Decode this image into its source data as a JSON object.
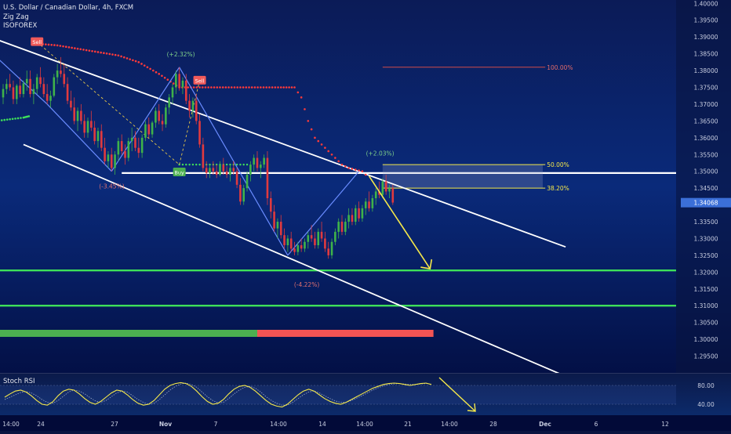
{
  "legend": {
    "symbol": "U.S. Dollar / Canadian Dollar, 4h, FXCM",
    "indicators": [
      "Zig Zag",
      "ISOFOREX"
    ]
  },
  "rsi": {
    "label": "Stoch RSI",
    "levels": [
      "80.00",
      "40.00"
    ]
  },
  "colors": {
    "bg_top": "#0b1a55",
    "bg_bottom": "#020a3a",
    "up": "#3fb24a",
    "down": "#e03a3e",
    "accent_yellow": "#f5e84a",
    "green_line": "#3ee05a",
    "sell": "#f05a5a",
    "buy": "#4caf50",
    "price_badge": "#3b6fd8"
  },
  "chart_data": {
    "type": "candlestick",
    "title": "U.S. Dollar / Canadian Dollar, 4h, FXCM",
    "ylim": [
      1.29,
      1.401
    ],
    "y_ticks": [
      "1.40000",
      "1.39500",
      "1.39000",
      "1.38500",
      "1.38000",
      "1.37500",
      "1.37000",
      "1.36500",
      "1.36000",
      "1.35500",
      "1.35000",
      "1.34500",
      "1.33500",
      "1.33000",
      "1.32500",
      "1.32000",
      "1.31500",
      "1.31000",
      "1.30500",
      "1.30000",
      "1.29500"
    ],
    "x_ticks": [
      "14:00",
      "24",
      "27",
      "Nov",
      "7",
      "14:00",
      "14",
      "14:00",
      "21",
      "14:00",
      "28",
      "Dec",
      "6",
      "12"
    ],
    "current_price": "1.34068",
    "candles": [
      [
        1.372,
        1.376,
        1.37,
        1.3745
      ],
      [
        1.3745,
        1.3775,
        1.373,
        1.376
      ],
      [
        1.376,
        1.379,
        1.374,
        1.375
      ],
      [
        1.375,
        1.377,
        1.37,
        1.3715
      ],
      [
        1.3715,
        1.376,
        1.37,
        1.3755
      ],
      [
        1.3755,
        1.378,
        1.372,
        1.373
      ],
      [
        1.373,
        1.377,
        1.372,
        1.3762
      ],
      [
        1.3762,
        1.38,
        1.374,
        1.3775
      ],
      [
        1.3775,
        1.38,
        1.372,
        1.373
      ],
      [
        1.373,
        1.376,
        1.37,
        1.3745
      ],
      [
        1.3745,
        1.379,
        1.373,
        1.378
      ],
      [
        1.378,
        1.381,
        1.375,
        1.376
      ],
      [
        1.376,
        1.378,
        1.372,
        1.373
      ],
      [
        1.373,
        1.376,
        1.37,
        1.371
      ],
      [
        1.371,
        1.374,
        1.369,
        1.3725
      ],
      [
        1.3725,
        1.379,
        1.372,
        1.378
      ],
      [
        1.378,
        1.382,
        1.376,
        1.38
      ],
      [
        1.38,
        1.384,
        1.378,
        1.379
      ],
      [
        1.379,
        1.382,
        1.375,
        1.376
      ],
      [
        1.376,
        1.378,
        1.37,
        1.371
      ],
      [
        1.371,
        1.374,
        1.368,
        1.369
      ],
      [
        1.369,
        1.372,
        1.364,
        1.365
      ],
      [
        1.365,
        1.369,
        1.362,
        1.368
      ],
      [
        1.368,
        1.37,
        1.364,
        1.365
      ],
      [
        1.365,
        1.367,
        1.36,
        1.3615
      ],
      [
        1.3615,
        1.366,
        1.36,
        1.365
      ],
      [
        1.365,
        1.368,
        1.362,
        1.363
      ],
      [
        1.363,
        1.365,
        1.358,
        1.359
      ],
      [
        1.359,
        1.363,
        1.357,
        1.362
      ],
      [
        1.362,
        1.364,
        1.356,
        1.357
      ],
      [
        1.357,
        1.36,
        1.352,
        1.353
      ],
      [
        1.353,
        1.356,
        1.351,
        1.355
      ],
      [
        1.355,
        1.357,
        1.35,
        1.351
      ],
      [
        1.351,
        1.356,
        1.349,
        1.355
      ],
      [
        1.355,
        1.36,
        1.353,
        1.359
      ],
      [
        1.359,
        1.361,
        1.355,
        1.356
      ],
      [
        1.356,
        1.358,
        1.352,
        1.354
      ],
      [
        1.354,
        1.36,
        1.353,
        1.359
      ],
      [
        1.359,
        1.363,
        1.356,
        1.36
      ],
      [
        1.36,
        1.362,
        1.356,
        1.357
      ],
      [
        1.357,
        1.36,
        1.354,
        1.3555
      ],
      [
        1.3555,
        1.361,
        1.354,
        1.36
      ],
      [
        1.36,
        1.365,
        1.359,
        1.364
      ],
      [
        1.364,
        1.366,
        1.36,
        1.361
      ],
      [
        1.361,
        1.365,
        1.36,
        1.3645
      ],
      [
        1.3645,
        1.369,
        1.363,
        1.368
      ],
      [
        1.368,
        1.37,
        1.364,
        1.365
      ],
      [
        1.365,
        1.367,
        1.362,
        1.364
      ],
      [
        1.364,
        1.37,
        1.363,
        1.369
      ],
      [
        1.369,
        1.373,
        1.367,
        1.372
      ],
      [
        1.372,
        1.376,
        1.37,
        1.375
      ],
      [
        1.375,
        1.38,
        1.373,
        1.379
      ],
      [
        1.379,
        1.381,
        1.374,
        1.375
      ],
      [
        1.375,
        1.378,
        1.373,
        1.377
      ],
      [
        1.377,
        1.379,
        1.37,
        1.371
      ],
      [
        1.371,
        1.373,
        1.366,
        1.368
      ],
      [
        1.368,
        1.372,
        1.366,
        1.371
      ],
      [
        1.371,
        1.373,
        1.364,
        1.365
      ],
      [
        1.365,
        1.367,
        1.357,
        1.358
      ],
      [
        1.358,
        1.36,
        1.35,
        1.351
      ],
      [
        1.351,
        1.353,
        1.348,
        1.3495
      ],
      [
        1.3495,
        1.352,
        1.348,
        1.351
      ],
      [
        1.351,
        1.353,
        1.349,
        1.35
      ],
      [
        1.35,
        1.352,
        1.348,
        1.349
      ],
      [
        1.349,
        1.353,
        1.3485,
        1.352
      ],
      [
        1.352,
        1.354,
        1.349,
        1.35
      ],
      [
        1.35,
        1.3515,
        1.348,
        1.349
      ],
      [
        1.349,
        1.352,
        1.347,
        1.351
      ],
      [
        1.351,
        1.353,
        1.349,
        1.35
      ],
      [
        1.35,
        1.351,
        1.345,
        1.346
      ],
      [
        1.346,
        1.348,
        1.34,
        1.341
      ],
      [
        1.341,
        1.346,
        1.34,
        1.345
      ],
      [
        1.345,
        1.35,
        1.344,
        1.349
      ],
      [
        1.349,
        1.353,
        1.347,
        1.352
      ],
      [
        1.352,
        1.355,
        1.35,
        1.354
      ],
      [
        1.354,
        1.356,
        1.35,
        1.351
      ],
      [
        1.351,
        1.353,
        1.348,
        1.352
      ],
      [
        1.352,
        1.355,
        1.351,
        1.354
      ],
      [
        1.354,
        1.356,
        1.34,
        1.342
      ],
      [
        1.342,
        1.344,
        1.336,
        1.338
      ],
      [
        1.338,
        1.34,
        1.332,
        1.333
      ],
      [
        1.333,
        1.336,
        1.33,
        1.335
      ],
      [
        1.335,
        1.337,
        1.33,
        1.331
      ],
      [
        1.331,
        1.333,
        1.327,
        1.328
      ],
      [
        1.328,
        1.331,
        1.326,
        1.33
      ],
      [
        1.33,
        1.332,
        1.326,
        1.327
      ],
      [
        1.327,
        1.329,
        1.325,
        1.326
      ],
      [
        1.326,
        1.329,
        1.325,
        1.328
      ],
      [
        1.328,
        1.33,
        1.326,
        1.327
      ],
      [
        1.327,
        1.33,
        1.326,
        1.329
      ],
      [
        1.329,
        1.332,
        1.327,
        1.331
      ],
      [
        1.331,
        1.334,
        1.329,
        1.33
      ],
      [
        1.33,
        1.332,
        1.327,
        1.328
      ],
      [
        1.328,
        1.333,
        1.327,
        1.332
      ],
      [
        1.332,
        1.335,
        1.329,
        1.33
      ],
      [
        1.33,
        1.332,
        1.326,
        1.327
      ],
      [
        1.327,
        1.329,
        1.324,
        1.325
      ],
      [
        1.325,
        1.33,
        1.324,
        1.329
      ],
      [
        1.329,
        1.333,
        1.328,
        1.332
      ],
      [
        1.332,
        1.336,
        1.33,
        1.335
      ],
      [
        1.335,
        1.337,
        1.331,
        1.332
      ],
      [
        1.332,
        1.336,
        1.331,
        1.335
      ],
      [
        1.335,
        1.339,
        1.333,
        1.337
      ],
      [
        1.337,
        1.339,
        1.334,
        1.335
      ],
      [
        1.335,
        1.34,
        1.334,
        1.339
      ],
      [
        1.339,
        1.341,
        1.335,
        1.336
      ],
      [
        1.336,
        1.34,
        1.335,
        1.339
      ],
      [
        1.339,
        1.342,
        1.337,
        1.341
      ],
      [
        1.341,
        1.344,
        1.338,
        1.339
      ],
      [
        1.339,
        1.343,
        1.338,
        1.342
      ],
      [
        1.342,
        1.345,
        1.34,
        1.344
      ],
      [
        1.344,
        1.347,
        1.342,
        1.343
      ],
      [
        1.343,
        1.348,
        1.342,
        1.347
      ],
      [
        1.347,
        1.349,
        1.343,
        1.344
      ],
      [
        1.344,
        1.346,
        1.342,
        1.345
      ],
      [
        1.345,
        1.346,
        1.34,
        1.3407
      ]
    ],
    "zigzag": [
      {
        "i": -2,
        "y": 1.384
      },
      {
        "i": 13,
        "y": 1.37
      },
      {
        "i": 32,
        "y": 1.35
      },
      {
        "i": 52,
        "y": 1.381
      },
      {
        "i": 84,
        "y": 1.325
      },
      {
        "i": 105,
        "y": 1.35
      }
    ],
    "zigzag_labels": [
      "(+2.32%)",
      "(-3.45%)",
      "(-4.22%)",
      "(+2.03%)"
    ],
    "signals": [
      {
        "type": "sell",
        "label": "Sell",
        "i": 10,
        "y": 1.3885
      },
      {
        "type": "buy",
        "label": "Buy",
        "i": 52,
        "y": 1.3497
      },
      {
        "type": "sell",
        "label": "Sell",
        "i": 58,
        "y": 1.377
      }
    ],
    "trend_dots_red": [
      [
        10,
        1.388
      ],
      [
        16,
        1.3875
      ],
      [
        22,
        1.3865
      ],
      [
        28,
        1.3855
      ],
      [
        34,
        1.3845
      ],
      [
        40,
        1.3825
      ],
      [
        46,
        1.379
      ],
      [
        52,
        1.375
      ],
      [
        58,
        1.375
      ],
      [
        64,
        1.375
      ],
      [
        70,
        1.375
      ],
      [
        76,
        1.375
      ],
      [
        82,
        1.375
      ],
      [
        86,
        1.375
      ],
      [
        88,
        1.372
      ],
      [
        90,
        1.365
      ],
      [
        92,
        1.36
      ],
      [
        94,
        1.358
      ],
      [
        96,
        1.356
      ],
      [
        98,
        1.354
      ],
      [
        100,
        1.352
      ],
      [
        102,
        1.351
      ],
      [
        104,
        1.3505
      ],
      [
        106,
        1.35
      ],
      [
        108,
        1.348
      ]
    ],
    "trend_dots_green": [
      [
        -2,
        1.365
      ],
      [
        2,
        1.3655
      ],
      [
        6,
        1.366
      ],
      [
        8,
        1.3665
      ]
    ],
    "channel_upper": [
      [
        -4,
        1.39
      ],
      [
        166,
        1.3275
      ]
    ],
    "channel_lower": [
      [
        6,
        1.358
      ],
      [
        166,
        1.289
      ]
    ],
    "horizontal_levels": [
      {
        "value": 1.3495,
        "color": "white"
      },
      {
        "value": 1.3205,
        "color": "green"
      },
      {
        "value": 1.31,
        "color": "green"
      }
    ],
    "fib": [
      {
        "label": "100.00%",
        "value": 1.381
      },
      {
        "label": "50.00%",
        "value": 1.352
      },
      {
        "label": "38.20%",
        "value": 1.345
      }
    ],
    "projection_arrow": {
      "from": [
        108,
        1.3495
      ],
      "to": [
        126,
        1.321
      ]
    },
    "stoch_rsi": {
      "ylim": [
        20,
        100
      ],
      "k": [
        55,
        62,
        68,
        70,
        66,
        58,
        48,
        40,
        38,
        45,
        58,
        68,
        72,
        70,
        62,
        52,
        44,
        40,
        46,
        55,
        64,
        70,
        68,
        60,
        50,
        42,
        38,
        40,
        48,
        60,
        72,
        80,
        84,
        86,
        84,
        78,
        68,
        56,
        46,
        40,
        42,
        50,
        62,
        72,
        78,
        80,
        76,
        68,
        58,
        48,
        40,
        36,
        34,
        40,
        50,
        60,
        68,
        72,
        68,
        60,
        52,
        46,
        42,
        40,
        44,
        50,
        56,
        62,
        68,
        74,
        78,
        82,
        84,
        85,
        84,
        82,
        80,
        82,
        84,
        85,
        82
      ],
      "d": [
        50,
        55,
        60,
        65,
        67,
        64,
        58,
        50,
        44,
        42,
        48,
        57,
        66,
        70,
        68,
        62,
        54,
        47,
        44,
        48,
        56,
        64,
        68,
        66,
        58,
        50,
        44,
        40,
        42,
        50,
        60,
        70,
        78,
        83,
        85,
        82,
        76,
        66,
        56,
        48,
        43,
        44,
        52,
        62,
        70,
        76,
        78,
        74,
        66,
        56,
        48,
        42,
        38,
        38,
        44,
        52,
        60,
        66,
        68,
        64,
        58,
        52,
        47,
        44,
        44,
        48,
        53,
        58,
        64,
        70,
        75,
        79,
        82,
        83,
        84,
        83,
        82,
        82,
        83,
        84,
        83
      ]
    }
  }
}
